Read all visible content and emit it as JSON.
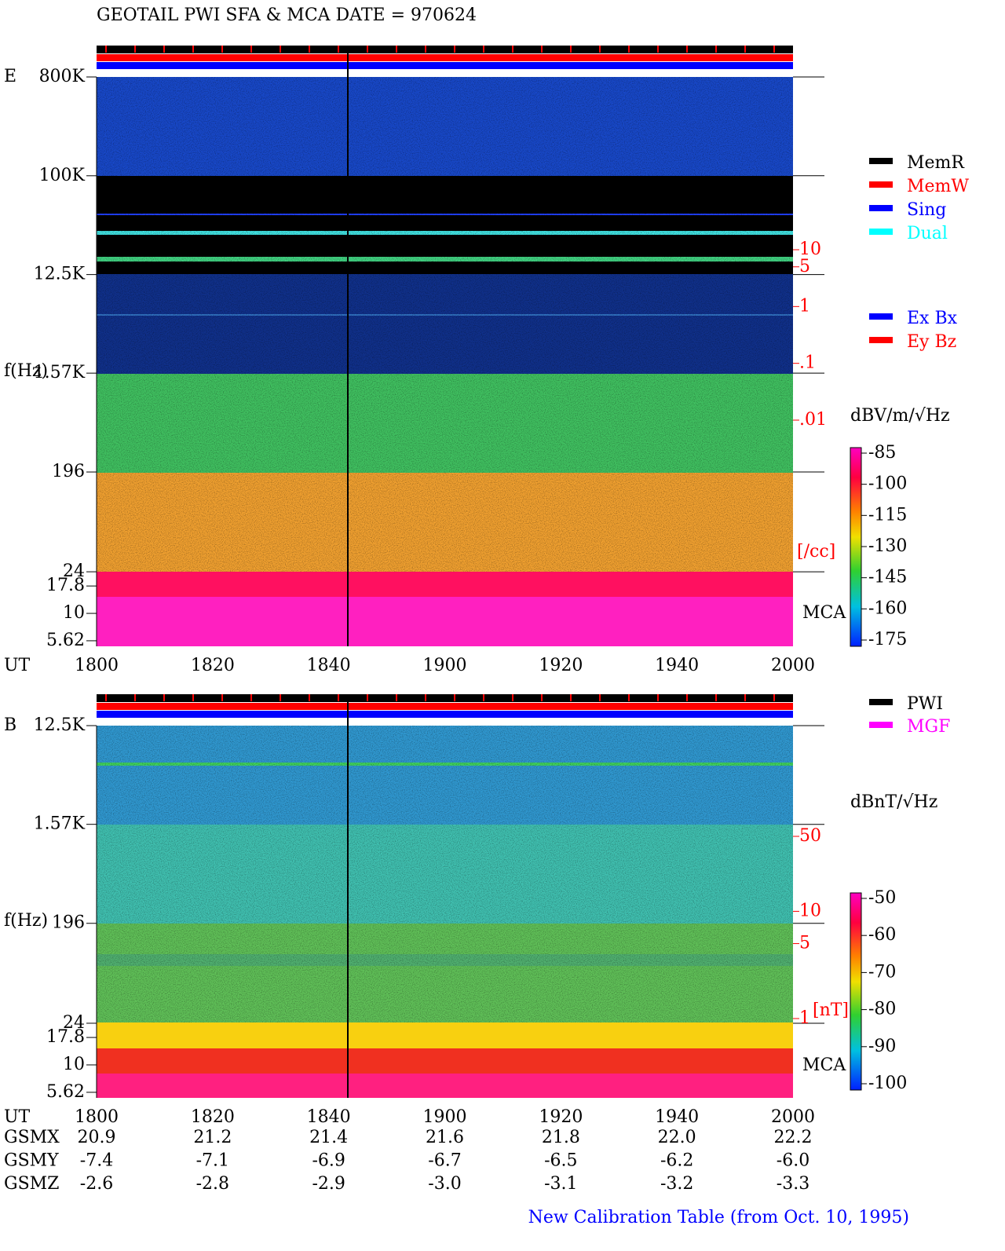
{
  "title": "GEOTAIL   PWI SFA & MCA   DATE = 970624",
  "chart_data": [
    {
      "type": "spectrogram",
      "panel_label": "E",
      "ylabel": "f(Hz)",
      "xlabel": "UT",
      "ylog": true,
      "ylim": [
        5,
        800000
      ],
      "yticks": [
        {
          "value": 800000,
          "label": "800K"
        },
        {
          "value": 100000,
          "label": "100K"
        },
        {
          "value": 12500,
          "label": "12.5K"
        },
        {
          "value": 1570,
          "label": "1.57K"
        },
        196,
        24,
        17.8,
        10,
        5.62
      ],
      "xticks": [
        "1800",
        "1820",
        "1840",
        "1900",
        "1920",
        "1940",
        "2000"
      ],
      "legend_groups": [
        [
          {
            "name": "MemR",
            "color": "#000000"
          },
          {
            "name": "MemW",
            "color": "#ff0000"
          },
          {
            "name": "Sing",
            "color": "#0000ff"
          },
          {
            "name": "Dual",
            "color": "#00ffff"
          }
        ],
        [
          {
            "name": "Ex Bx",
            "color": "#0000ff"
          },
          {
            "name": "Ey Bz",
            "color": "#ff0000"
          }
        ]
      ],
      "colorbar_label": "dBV/m/√Hz",
      "clim": [
        -175,
        -85
      ],
      "cticks": [
        -85,
        -100,
        -115,
        -130,
        -145,
        -160,
        -175
      ],
      "y2label": "[/cc]",
      "y2log": true,
      "y2lim": [
        0.01,
        10
      ],
      "y2ticks": [
        10,
        5,
        1,
        {
          "value": 0.1,
          "label": ".1"
        },
        {
          "value": 0.01,
          "label": ".01"
        }
      ],
      "mca_label": "MCA"
    },
    {
      "type": "spectrogram",
      "panel_label": "B",
      "ylabel": "f(Hz)",
      "xlabel": "UT",
      "ylog": true,
      "ylim": [
        5,
        12500
      ],
      "yticks": [
        {
          "value": 12500,
          "label": "12.5K"
        },
        {
          "value": 1570,
          "label": "1.57K"
        },
        196,
        24,
        17.8,
        10,
        5.62
      ],
      "xticks": [
        "1800",
        "1820",
        "1840",
        "1900",
        "1920",
        "1940",
        "2000"
      ],
      "legend_groups": [
        [
          {
            "name": "PWI",
            "color": "#000000"
          },
          {
            "name": "MGF",
            "color": "#ff00ff"
          }
        ]
      ],
      "colorbar_label": "dBnT/√Hz",
      "clim": [
        -100,
        -50
      ],
      "cticks": [
        -50,
        -60,
        -70,
        -80,
        -90,
        -100
      ],
      "y2label": "[nT]",
      "y2log": true,
      "y2lim": [
        1,
        50
      ],
      "y2ticks": [
        50,
        10,
        5,
        1
      ],
      "mca_label": "MCA"
    }
  ],
  "orbit": {
    "rows": [
      [
        "GSMX",
        "20.9",
        "21.2",
        "21.4",
        "21.6",
        "21.8",
        "22.0",
        "22.2"
      ],
      [
        "GSMY",
        "-7.4",
        "-7.1",
        "-6.9",
        "-6.7",
        "-6.5",
        "-6.2",
        "-6.0"
      ],
      [
        "GSMZ",
        "-2.6",
        "-2.8",
        "-2.9",
        "-3.0",
        "-3.1",
        "-3.2",
        "-3.3"
      ]
    ]
  },
  "footer": "New Calibration Table (from Oct. 10, 1995)"
}
